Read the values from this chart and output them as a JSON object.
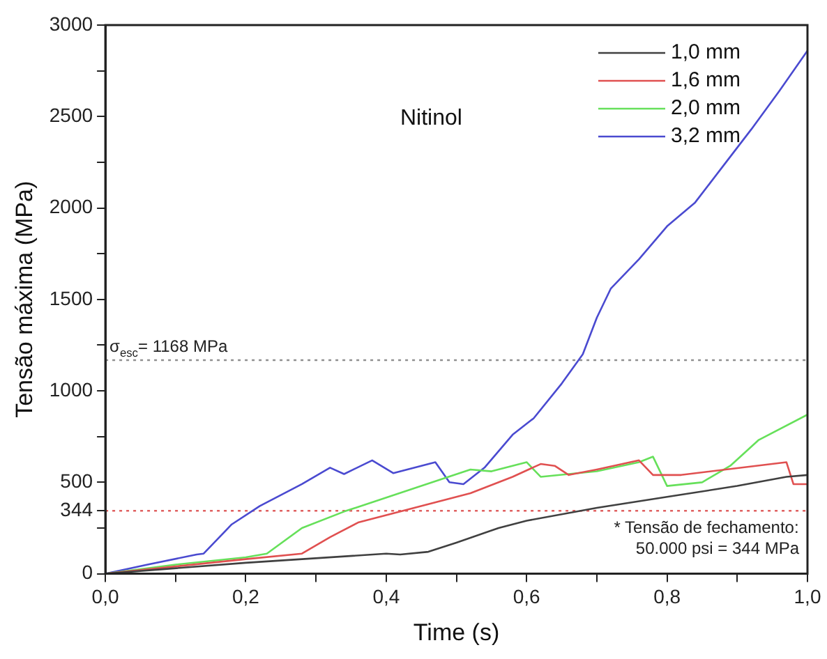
{
  "chart_data": {
    "type": "line",
    "xlabel": "Time (s)",
    "ylabel": "Tensão máxima (MPa)",
    "annotations": [
      "Nitinol"
    ],
    "xlim": [
      0,
      1
    ],
    "ylim": [
      0,
      3000
    ],
    "xticks": [
      {
        "value": 0,
        "label": "0,0"
      },
      {
        "value": 0.1,
        "label": null
      },
      {
        "value": 0.2,
        "label": "0,2"
      },
      {
        "value": 0.3,
        "label": null
      },
      {
        "value": 0.4,
        "label": "0,4"
      },
      {
        "value": 0.5,
        "label": null
      },
      {
        "value": 0.6,
        "label": "0,6"
      },
      {
        "value": 0.7,
        "label": null
      },
      {
        "value": 0.8,
        "label": "0,8"
      },
      {
        "value": 0.9,
        "label": null
      },
      {
        "value": 1,
        "label": "1,0"
      }
    ],
    "yticks": [
      0,
      {
        "value": 250,
        "label": null
      },
      344,
      500,
      {
        "value": 750,
        "label": null
      },
      1000,
      {
        "value": 1250,
        "label": null
      },
      1500,
      {
        "value": 1750,
        "label": null
      },
      2000,
      {
        "value": 2250,
        "label": null
      },
      2500,
      {
        "value": 2750,
        "label": null
      },
      3000
    ],
    "grid": false,
    "legend": "top right",
    "marker": "none",
    "line_style": "solid",
    "ref_lines": [
      {
        "axis": "y",
        "value": 1168,
        "label": "σ$_{esc}$= 1168 MPa",
        "color": "#909090",
        "line_style": "dotted"
      },
      {
        "axis": "y",
        "value": 344,
        "label": "* Tensão de fechamento: 50.000 psi = 344 MPa",
        "color": "#e06060",
        "line_style": "dotted"
      }
    ],
    "series": [
      {
        "name": "1,0 mm",
        "color": "#404040",
        "x": [
          0,
          0.2,
          0.4,
          0.42,
          0.46,
          0.5,
          0.56,
          0.6,
          0.7,
          0.8,
          0.9,
          0.97,
          1
        ],
        "values": [
          0,
          60,
          110,
          105,
          120,
          170,
          250,
          290,
          360,
          420,
          480,
          530,
          540
        ]
      },
      {
        "name": "1,6 mm",
        "color": "#e05050",
        "x": [
          0,
          0.1,
          0.2,
          0.28,
          0.32,
          0.36,
          0.42,
          0.48,
          0.52,
          0.58,
          0.62,
          0.64,
          0.66,
          0.7,
          0.76,
          0.78,
          0.82,
          0.97,
          0.98,
          1
        ],
        "values": [
          0,
          40,
          80,
          110,
          200,
          280,
          340,
          400,
          440,
          530,
          600,
          590,
          540,
          570,
          620,
          540,
          540,
          610,
          490,
          490
        ]
      },
      {
        "name": "2,0 mm",
        "color": "#66e05a",
        "x": [
          0,
          0.1,
          0.2,
          0.23,
          0.28,
          0.34,
          0.45,
          0.52,
          0.55,
          0.6,
          0.62,
          0.7,
          0.76,
          0.78,
          0.8,
          0.85,
          0.89,
          0.93,
          1
        ],
        "values": [
          0,
          50,
          90,
          110,
          250,
          340,
          480,
          570,
          560,
          610,
          530,
          560,
          610,
          640,
          480,
          500,
          590,
          730,
          870
        ]
      },
      {
        "name": "3,2 mm",
        "color": "#4a4ad0",
        "x": [
          0,
          0.06,
          0.13,
          0.14,
          0.18,
          0.22,
          0.28,
          0.32,
          0.34,
          0.38,
          0.41,
          0.47,
          0.49,
          0.51,
          0.54,
          0.58,
          0.61,
          0.65,
          0.68,
          0.7,
          0.72,
          0.76,
          0.8,
          0.84,
          0.88,
          0.92,
          0.96,
          1
        ],
        "values": [
          0,
          50,
          105,
          110,
          270,
          370,
          490,
          580,
          545,
          620,
          550,
          610,
          500,
          490,
          580,
          760,
          850,
          1040,
          1200,
          1400,
          1560,
          1720,
          1900,
          2030,
          2230,
          2430,
          2640,
          2860
        ]
      }
    ]
  }
}
